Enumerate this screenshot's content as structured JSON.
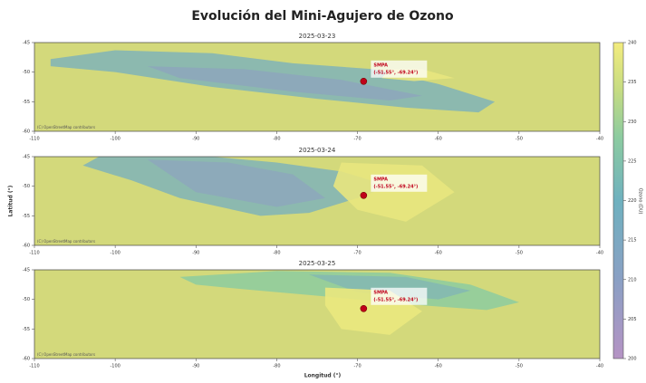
{
  "figure": {
    "title": "Evolución del Mini-Agujero de Ozono",
    "xlabel": "Longitud (°)",
    "ylabel": "Latitud (°)",
    "colorbar": {
      "label": "Ozono (DU)",
      "lim": [
        200,
        240
      ],
      "ticks": [
        200,
        205,
        210,
        215,
        220,
        225,
        230,
        235,
        240
      ]
    }
  },
  "chart_data": [
    {
      "type": "map",
      "title": "2025-03-23",
      "xlim": [
        -110,
        -40
      ],
      "xticks": [
        -110,
        -100,
        -90,
        -80,
        -70,
        -60,
        -50,
        -40
      ],
      "ylim": [
        -60,
        -45
      ],
      "yticks": [
        -45,
        -50,
        -55,
        -60
      ],
      "attribution": "(C) OpenStreetMap contributors",
      "station": {
        "name": "SMPA",
        "label": "(-51.55°, -69.24°)",
        "lat": -51.55,
        "lon": -69.24,
        "color": "#c0001a"
      }
    },
    {
      "type": "map",
      "title": "2025-03-24",
      "xlim": [
        -110,
        -40
      ],
      "xticks": [
        -110,
        -100,
        -90,
        -80,
        -70,
        -60,
        -50,
        -40
      ],
      "ylim": [
        -60,
        -45
      ],
      "yticks": [
        -45,
        -50,
        -55,
        -60
      ],
      "attribution": "(C) OpenStreetMap contributors",
      "station": {
        "name": "SMPA",
        "label": "(-51.55°, -69.24°)",
        "lat": -51.55,
        "lon": -69.24,
        "color": "#c0001a"
      }
    },
    {
      "type": "map",
      "title": "2025-03-25",
      "xlim": [
        -110,
        -40
      ],
      "xticks": [
        -110,
        -100,
        -90,
        -80,
        -70,
        -60,
        -50,
        -40
      ],
      "ylim": [
        -60,
        -45
      ],
      "yticks": [
        -45,
        -50,
        -55,
        -60
      ],
      "attribution": "(C) OpenStreetMap contributors",
      "station": {
        "name": "SMPA",
        "label": "(-51.55°, -69.24°)",
        "lat": -51.55,
        "lon": -69.24,
        "color": "#c0001a"
      }
    }
  ]
}
